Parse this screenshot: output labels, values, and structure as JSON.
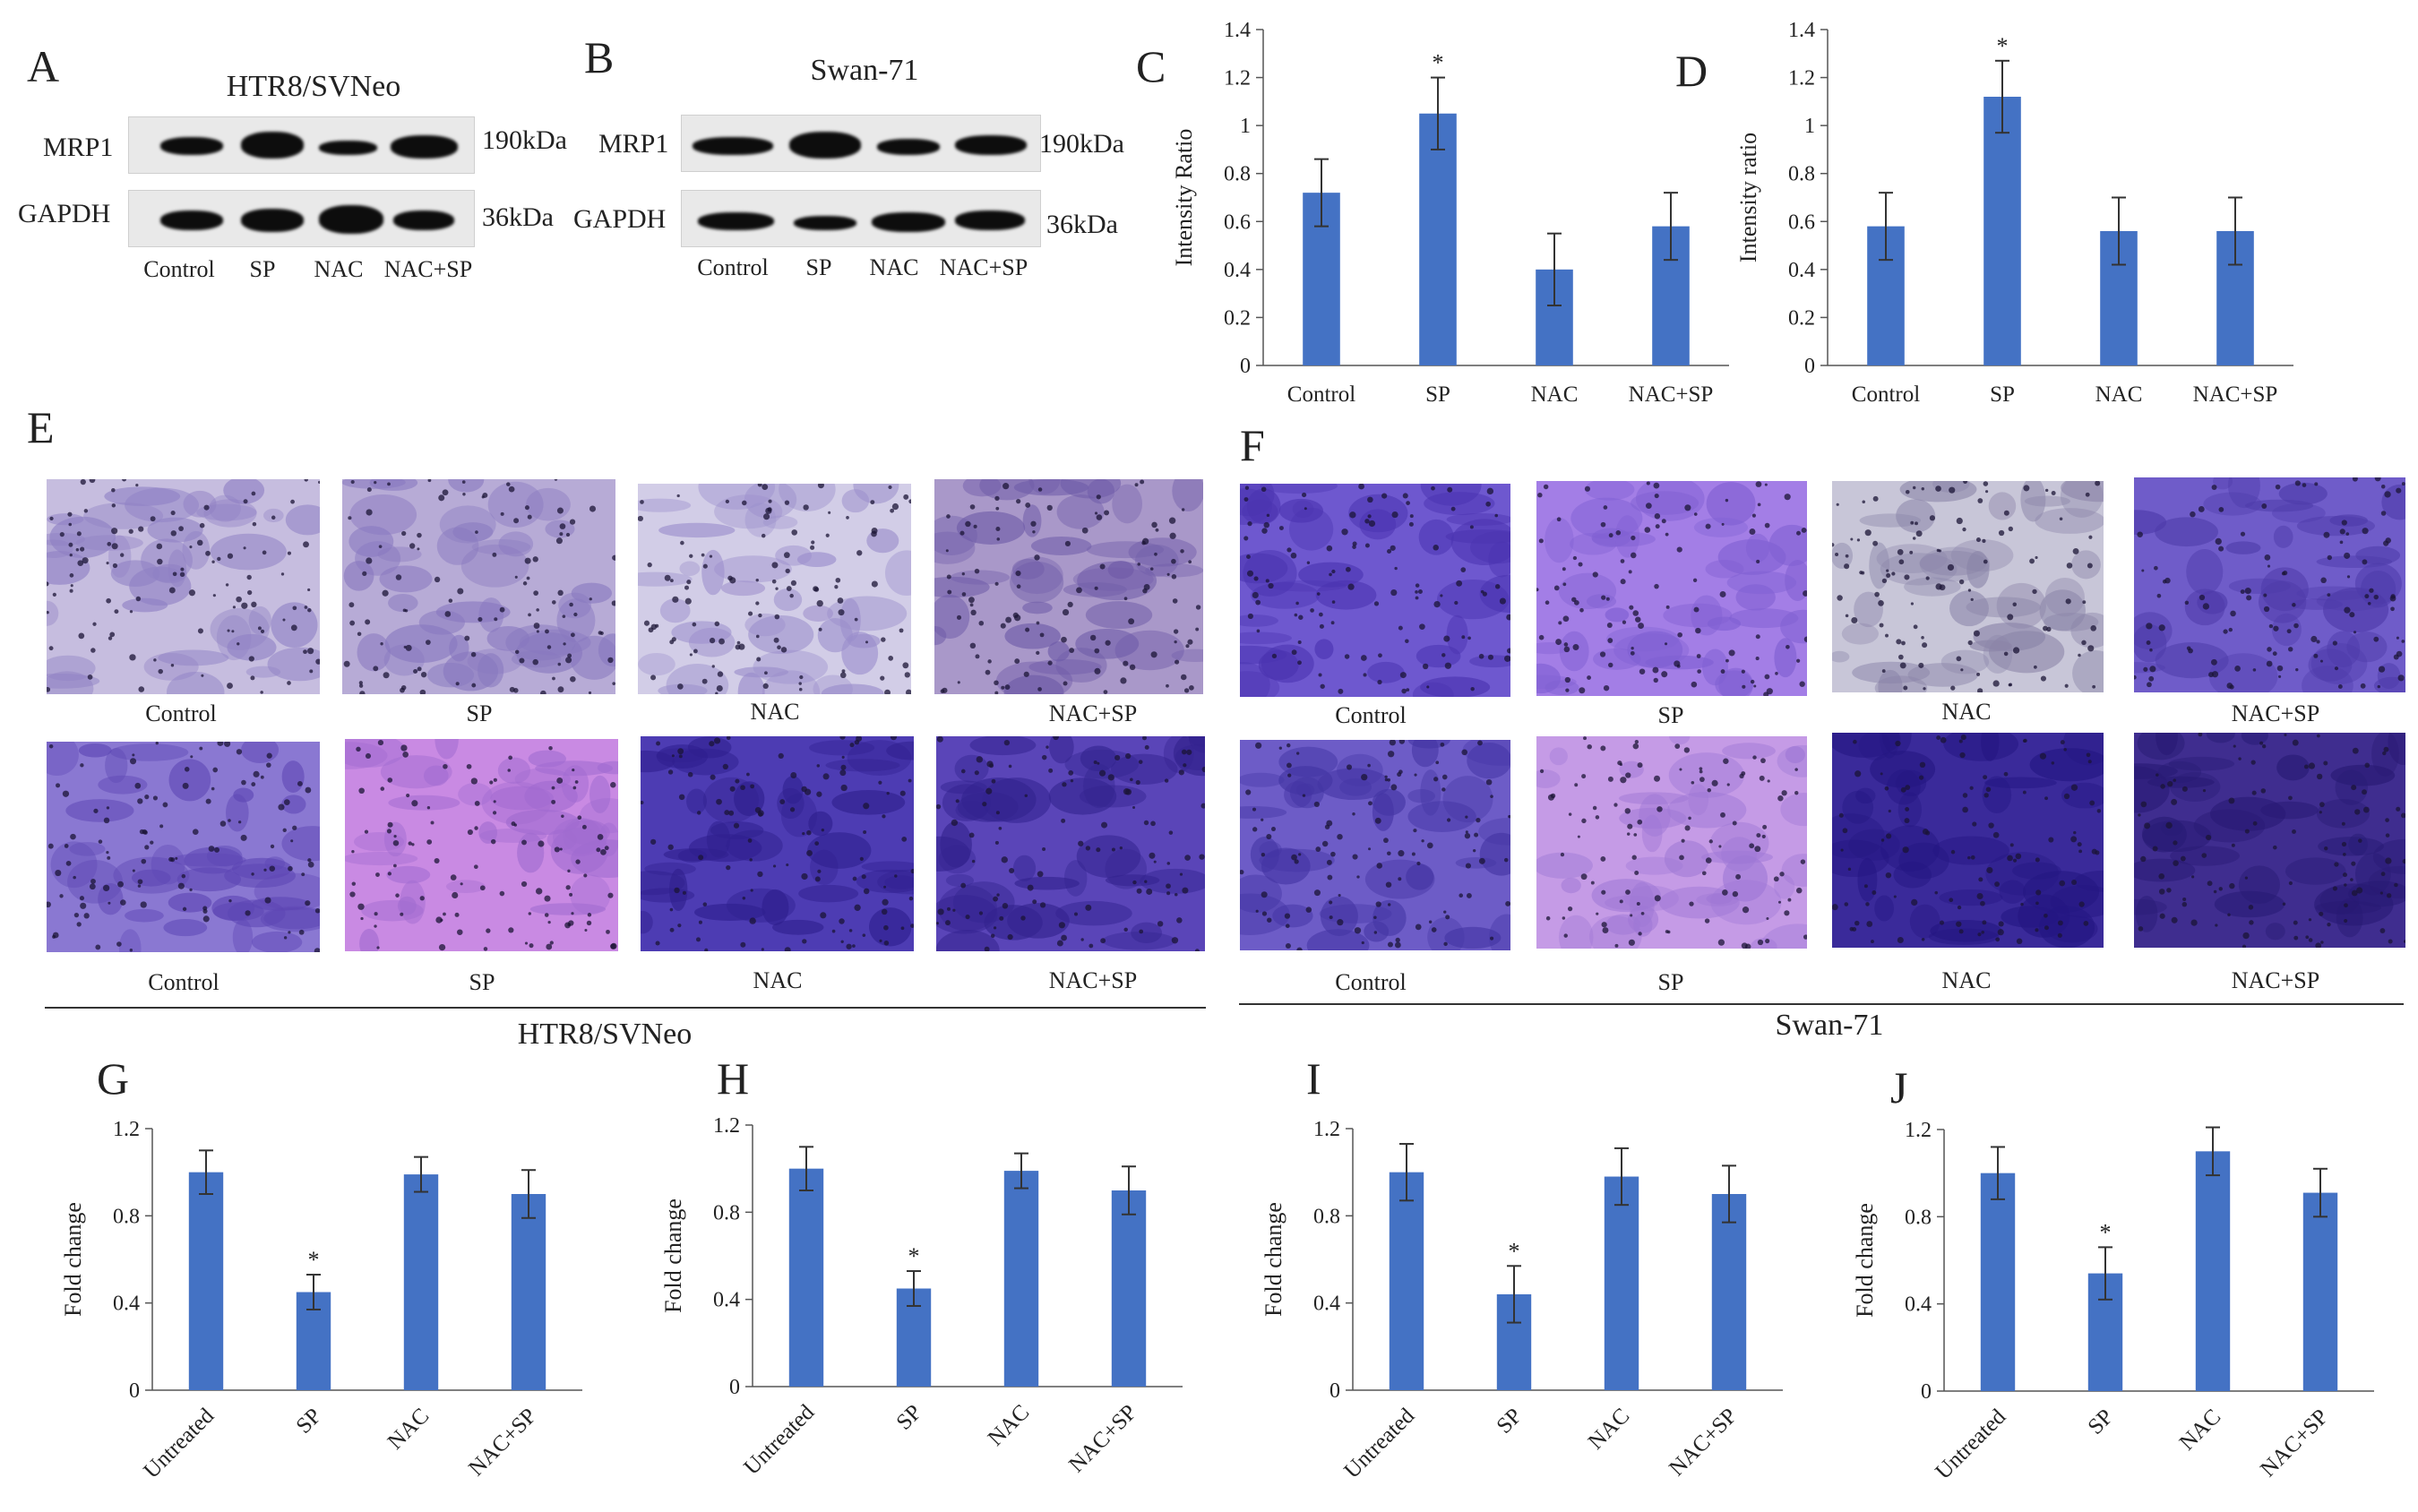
{
  "panels": {
    "A": "A",
    "B": "B",
    "C": "C",
    "D": "D",
    "E": "E",
    "F": "F",
    "G": "G",
    "H": "H",
    "I": "I",
    "J": "J"
  },
  "blots": {
    "A": {
      "title": "HTR8/SVNeo",
      "row1_label": "MRP1",
      "row2_label": "GAPDH",
      "row1_size": "190kDa",
      "row2_size": "36kDa",
      "lanes": [
        "Control",
        "SP",
        "NAC",
        "NAC+SP"
      ]
    },
    "B": {
      "title": "Swan-71",
      "row1_label": "MRP1",
      "row2_label": "GAPDH",
      "row1_size": "190kDa",
      "row2_size": "36kDa",
      "lanes": [
        "Control",
        "SP",
        "NAC",
        "NAC+SP"
      ]
    }
  },
  "micrographs": {
    "E": {
      "row1": [
        "Control",
        "SP",
        "NAC",
        "NAC+SP"
      ],
      "row2": [
        "Control",
        "SP",
        "NAC",
        "NAC+SP"
      ],
      "group": "HTR8/SVNeo"
    },
    "F": {
      "row1": [
        "Control",
        "SP",
        "NAC",
        "NAC+SP"
      ],
      "row2": [
        "Control",
        "SP",
        "NAC",
        "NAC+SP"
      ],
      "group": "Swan-71"
    }
  },
  "colors": {
    "bar": "#4472c4",
    "axis": "#555555"
  },
  "chart_data": [
    {
      "id": "C",
      "type": "bar",
      "categories": [
        "Control",
        "SP",
        "NAC",
        "NAC+SP"
      ],
      "values": [
        0.72,
        1.05,
        0.4,
        0.58
      ],
      "errors": [
        0.14,
        0.15,
        0.15,
        0.14
      ],
      "significance": [
        "",
        "*",
        "",
        ""
      ],
      "ylabel": "Intensity Ratio",
      "ylim": [
        0,
        1.4
      ],
      "ticks": [
        "0",
        "0.2",
        "0.4",
        "0.6",
        "0.8",
        "1",
        "1.2",
        "1.4"
      ],
      "tick_values": [
        0,
        0.2,
        0.4,
        0.6,
        0.8,
        1,
        1.2,
        1.4
      ],
      "rotate_x": false
    },
    {
      "id": "D",
      "type": "bar",
      "categories": [
        "Control",
        "SP",
        "NAC",
        "NAC+SP"
      ],
      "values": [
        0.58,
        1.12,
        0.56,
        0.56
      ],
      "errors": [
        0.14,
        0.15,
        0.14,
        0.14
      ],
      "significance": [
        "",
        "*",
        "",
        ""
      ],
      "ylabel": "Intensity ratio",
      "ylim": [
        0,
        1.4
      ],
      "ticks": [
        "0",
        "0.2",
        "0.4",
        "0.6",
        "0.8",
        "1",
        "1.2",
        "1.4"
      ],
      "tick_values": [
        0,
        0.2,
        0.4,
        0.6,
        0.8,
        1,
        1.2,
        1.4
      ],
      "rotate_x": false
    },
    {
      "id": "G",
      "type": "bar",
      "categories": [
        "Untreated",
        "SP",
        "NAC",
        "NAC+SP"
      ],
      "values": [
        1.0,
        0.45,
        0.99,
        0.9
      ],
      "errors": [
        0.1,
        0.08,
        0.08,
        0.11
      ],
      "significance": [
        "",
        "*",
        "",
        ""
      ],
      "ylabel": "Fold change",
      "ylim": [
        0,
        1.2
      ],
      "ticks": [
        "0",
        "0.4",
        "0.8",
        "1.2"
      ],
      "tick_values": [
        0,
        0.4,
        0.8,
        1.2
      ],
      "rotate_x": true
    },
    {
      "id": "H",
      "type": "bar",
      "categories": [
        "Untreated",
        "SP",
        "NAC",
        "NAC+SP"
      ],
      "values": [
        1.0,
        0.45,
        0.99,
        0.9
      ],
      "errors": [
        0.1,
        0.08,
        0.08,
        0.11
      ],
      "significance": [
        "",
        "*",
        "",
        ""
      ],
      "ylabel": "Fold change",
      "ylim": [
        0,
        1.2
      ],
      "ticks": [
        "0",
        "0.4",
        "0.8",
        "1.2"
      ],
      "tick_values": [
        0,
        0.4,
        0.8,
        1.2
      ],
      "rotate_x": true
    },
    {
      "id": "I",
      "type": "bar",
      "categories": [
        "Untreated",
        "SP",
        "NAC",
        "NAC+SP"
      ],
      "values": [
        1.0,
        0.44,
        0.98,
        0.9
      ],
      "errors": [
        0.13,
        0.13,
        0.13,
        0.13
      ],
      "significance": [
        "",
        "*",
        "",
        ""
      ],
      "ylabel": "Fold change",
      "ylim": [
        0,
        1.2
      ],
      "ticks": [
        "0",
        "0.4",
        "0.8",
        "1.2"
      ],
      "tick_values": [
        0,
        0.4,
        0.8,
        1.2
      ],
      "rotate_x": true
    },
    {
      "id": "J",
      "type": "bar",
      "categories": [
        "Untreated",
        "SP",
        "NAC",
        "NAC+SP"
      ],
      "values": [
        1.0,
        0.54,
        1.1,
        0.91
      ],
      "errors": [
        0.12,
        0.12,
        0.11,
        0.11
      ],
      "significance": [
        "",
        "*",
        "",
        ""
      ],
      "ylabel": "Fold change",
      "ylim": [
        0,
        1.2
      ],
      "ticks": [
        "0",
        "0.4",
        "0.8",
        "1.2"
      ],
      "tick_values": [
        0,
        0.4,
        0.8,
        1.2
      ],
      "rotate_x": true
    }
  ]
}
